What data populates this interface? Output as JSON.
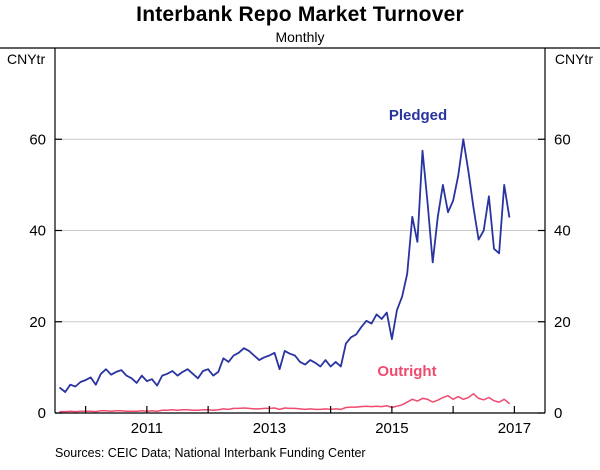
{
  "chart_data": {
    "type": "line",
    "title": "Interbank Repo Market Turnover",
    "subtitle": "Monthly",
    "unit_left": "CNYtr",
    "unit_right": "CNYtr",
    "xlim": [
      2009.5,
      2017.5
    ],
    "ylim": [
      0,
      80
    ],
    "yticks": [
      0,
      20,
      40,
      60
    ],
    "ygrid": [
      20,
      40,
      60
    ],
    "xticks": [
      2010,
      2011,
      2012,
      2013,
      2014,
      2015,
      2016,
      2017
    ],
    "xtick_labels": [
      2011,
      2013,
      2015,
      2017
    ],
    "grid": true,
    "legend_position": "inline-annotations",
    "colors": {
      "grid": "#c9c9c9",
      "axis": "#000000"
    },
    "series": [
      {
        "name": "Pledged",
        "color": "#2a34a0",
        "width": 1.8,
        "x_start": 2009.5833,
        "x_step": 0.083333,
        "values": [
          5.5,
          4.6,
          6.2,
          5.8,
          6.8,
          7.2,
          7.8,
          6.2,
          8.6,
          9.6,
          8.4,
          9.0,
          9.4,
          8.2,
          7.6,
          6.6,
          8.2,
          7.0,
          7.4,
          6.0,
          8.2,
          8.6,
          9.2,
          8.2,
          9.0,
          9.6,
          8.6,
          7.6,
          9.2,
          9.6,
          8.2,
          9.0,
          12.0,
          11.2,
          12.6,
          13.2,
          14.2,
          13.6,
          12.6,
          11.6,
          12.2,
          12.6,
          13.2,
          9.6,
          13.6,
          13.0,
          12.6,
          11.2,
          10.6,
          11.6,
          11.0,
          10.2,
          11.6,
          10.2,
          11.2,
          10.2,
          15.2,
          16.6,
          17.2,
          18.8,
          20.2,
          19.6,
          21.6,
          20.6,
          22.0,
          16.2,
          22.6,
          25.5,
          30.5,
          43.0,
          37.5,
          57.5,
          46.0,
          33.0,
          43.0,
          50.0,
          44.0,
          46.5,
          52.0,
          60.0,
          53.0,
          45.0,
          38.0,
          40.0,
          47.5,
          36.0,
          35.0,
          50.0,
          43.0
        ]
      },
      {
        "name": "Outright",
        "color": "#ee4b6f",
        "width": 1.5,
        "x_start": 2009.5833,
        "x_step": 0.083333,
        "values": [
          0.3,
          0.3,
          0.4,
          0.3,
          0.4,
          0.4,
          0.4,
          0.3,
          0.5,
          0.5,
          0.4,
          0.5,
          0.5,
          0.4,
          0.4,
          0.4,
          0.5,
          0.4,
          0.5,
          0.4,
          0.6,
          0.6,
          0.7,
          0.6,
          0.7,
          0.7,
          0.6,
          0.6,
          0.7,
          0.7,
          0.6,
          0.7,
          0.9,
          0.8,
          1.0,
          1.0,
          1.1,
          1.0,
          0.9,
          0.9,
          1.0,
          1.0,
          1.1,
          0.8,
          1.1,
          1.0,
          1.0,
          0.9,
          0.8,
          0.9,
          0.8,
          0.8,
          0.9,
          0.8,
          0.9,
          0.8,
          1.2,
          1.3,
          1.3,
          1.4,
          1.5,
          1.4,
          1.5,
          1.4,
          1.6,
          1.2,
          1.5,
          1.8,
          2.4,
          3.0,
          2.6,
          3.2,
          3.0,
          2.4,
          2.8,
          3.4,
          3.8,
          3.0,
          3.6,
          3.0,
          3.4,
          4.2,
          3.2,
          2.9,
          3.4,
          2.7,
          2.4,
          3.0,
          2.1
        ]
      }
    ]
  },
  "footer": {
    "sources": "Sources: CEIC Data; National Interbank Funding Center"
  }
}
